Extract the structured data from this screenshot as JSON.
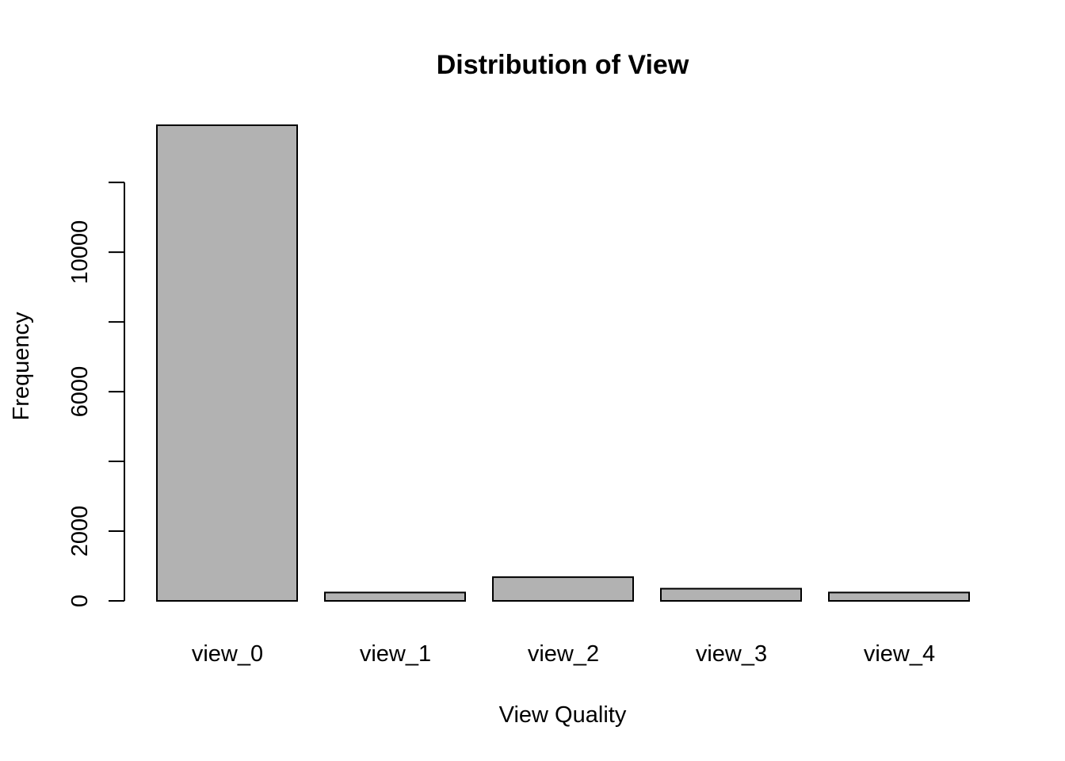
{
  "chart_data": {
    "type": "bar",
    "title": "Distribution of View",
    "xlabel": "View Quality",
    "ylabel": "Frequency",
    "categories": [
      "view_0",
      "view_1",
      "view_2",
      "view_3",
      "view_4"
    ],
    "values": [
      13640,
      240,
      680,
      350,
      240
    ],
    "ylim": [
      0,
      13640
    ],
    "y_axis_max_tick": 12000,
    "y_ticks": [
      0,
      2000,
      4000,
      6000,
      8000,
      10000,
      12000
    ],
    "y_tick_labels": [
      "0",
      "2000",
      "",
      "6000",
      "",
      "10000",
      ""
    ],
    "grid": false,
    "legend": "none",
    "bar_color": "#b2b2b2",
    "bar_border_color": "#000000"
  }
}
